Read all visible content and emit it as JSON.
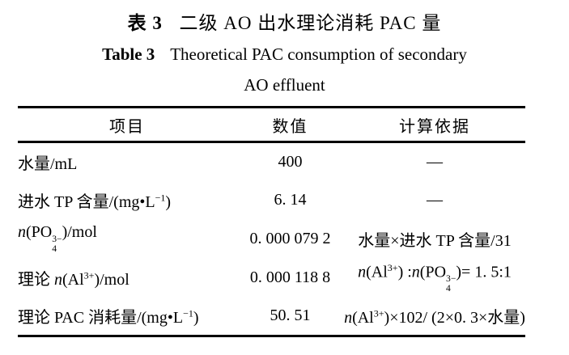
{
  "title": {
    "zh_label": "表 3",
    "zh_text": "二级 AO 出水理论消耗 PAC 量",
    "en_label": "Table 3",
    "en_line1": "Theoretical PAC consumption of secondary",
    "en_line2": "AO effluent"
  },
  "table": {
    "headers": [
      "项目",
      "数值",
      "计算依据"
    ],
    "rows": [
      {
        "item": [
          {
            "t": "水量/mL"
          }
        ],
        "value": "400",
        "basis": [
          {
            "t": "—"
          }
        ]
      },
      {
        "item": [
          {
            "t": "进水 TP 含量/(mg•L"
          },
          {
            "t": "−1",
            "f": "sup"
          },
          {
            "t": ")"
          }
        ],
        "value": "6. 14",
        "basis": [
          {
            "t": "—"
          }
        ]
      },
      {
        "item": [
          {
            "t": "n",
            "i": true
          },
          {
            "t": "(PO"
          },
          {
            "up": "3−",
            "dn": "4"
          },
          {
            "t": ")/mol"
          }
        ],
        "value": "0. 000 079 2",
        "basis": [
          {
            "t": "水量×进水 TP 含量/31"
          }
        ]
      },
      {
        "item": [
          {
            "t": "理论 "
          },
          {
            "t": "n",
            "i": true
          },
          {
            "t": "(Al"
          },
          {
            "t": "3+",
            "f": "sup"
          },
          {
            "t": ")/mol"
          }
        ],
        "value": "0. 000 118 8",
        "basis": [
          {
            "t": "n",
            "i": true
          },
          {
            "t": "(Al"
          },
          {
            "t": "3+",
            "f": "sup"
          },
          {
            "t": ") :"
          },
          {
            "t": "n",
            "i": true
          },
          {
            "t": "(PO"
          },
          {
            "up": "3−",
            "dn": "4"
          },
          {
            "t": ")= 1. 5:1"
          }
        ]
      },
      {
        "item": [
          {
            "t": "理论 PAC 消耗量/(mg•L"
          },
          {
            "t": "−1",
            "f": "sup"
          },
          {
            "t": ")"
          }
        ],
        "value": "50. 51",
        "basis": [
          {
            "t": "n",
            "i": true
          },
          {
            "t": "(Al"
          },
          {
            "t": "3+",
            "f": "sup"
          },
          {
            "t": ")×102/ (2×0. 3×水量)"
          }
        ]
      }
    ]
  },
  "colors": {
    "rule": "#000000",
    "text": "#000000",
    "background": "#ffffff"
  }
}
